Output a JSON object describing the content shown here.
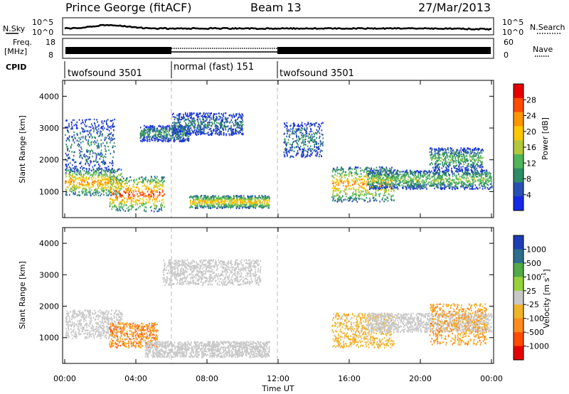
{
  "header": {
    "station": "Prince George (fitACF)",
    "beam": "Beam 13",
    "date": "27/Mar/2013"
  },
  "strip_labels": {
    "nsky": "N.Sky",
    "nsearch": "N.Search",
    "freq_line1": "Freq.",
    "freq_line2": "[MHz]",
    "nave": "Nave",
    "cpid": "CPID",
    "noise_ticks_left": [
      "10^5",
      "10^0"
    ],
    "noise_ticks_right": [
      "10^5",
      "10^0"
    ],
    "freq_ticks": [
      "18",
      "8"
    ],
    "nave_ticks": [
      "60",
      "0"
    ]
  },
  "cpid_segments": [
    {
      "label": "twofsound 3501",
      "start_h": 0,
      "end_h": 6
    },
    {
      "label": "normal (fast) 151",
      "start_h": 6,
      "end_h": 12
    },
    {
      "label": "twofsound 3501",
      "start_h": 12,
      "end_h": 24
    }
  ],
  "x_axis": {
    "title": "Time UT",
    "ticks": [
      "00:00",
      "04:00",
      "08:00",
      "12:00",
      "16:00",
      "20:00",
      "00:00"
    ],
    "range_h": [
      0,
      24
    ]
  },
  "chart_data": [
    {
      "type": "heatmap",
      "panel": "power",
      "ylabel": "Slant Range [km]",
      "ylim": [
        180,
        4500
      ],
      "yticks": [
        "4000",
        "3000",
        "2000",
        "1000"
      ],
      "colorbar_title": "Power [dB]",
      "colorbar_ticks": [
        "28",
        "24",
        "20",
        "16",
        "12",
        "8",
        "4"
      ],
      "colorbar_range": [
        0,
        30
      ],
      "colors": [
        "#1428e6",
        "#2850b4",
        "#2e8c64",
        "#50b45a",
        "#b4c83c",
        "#ffc800",
        "#ff9600",
        "#ff4b00",
        "#e60000"
      ],
      "bands": [
        {
          "t0": 0.0,
          "t1": 2.8,
          "r0": 1600,
          "r1": 3300,
          "peak": 8
        },
        {
          "t0": 0.0,
          "t1": 3.2,
          "r0": 900,
          "r1": 1750,
          "peak": 22
        },
        {
          "t0": 2.5,
          "t1": 5.6,
          "r0": 400,
          "r1": 1500,
          "peak": 26
        },
        {
          "t0": 4.2,
          "t1": 7.0,
          "r0": 2600,
          "r1": 3100,
          "peak": 10
        },
        {
          "t0": 6.0,
          "t1": 10.0,
          "r0": 2800,
          "r1": 3500,
          "peak": 8
        },
        {
          "t0": 7.0,
          "t1": 11.5,
          "r0": 500,
          "r1": 900,
          "peak": 20
        },
        {
          "t0": 12.3,
          "t1": 14.5,
          "r0": 2100,
          "r1": 3200,
          "peak": 8
        },
        {
          "t0": 15.0,
          "t1": 18.5,
          "r0": 700,
          "r1": 1800,
          "peak": 22
        },
        {
          "t0": 17.0,
          "t1": 24.0,
          "r0": 1100,
          "r1": 1700,
          "peak": 14
        },
        {
          "t0": 20.5,
          "t1": 23.5,
          "r0": 1700,
          "r1": 2400,
          "peak": 12
        }
      ]
    },
    {
      "type": "heatmap",
      "panel": "velocity",
      "ylabel": "Slant Range [km]",
      "ylim": [
        180,
        4500
      ],
      "yticks": [
        "4000",
        "3000",
        "2000",
        "1000"
      ],
      "colorbar_title": "Velocity [m s^-1]",
      "colorbar_ticks": [
        "1000",
        "500",
        "100",
        "25",
        "-25",
        "-100",
        "-500",
        "-1000"
      ],
      "colorbar_range": [
        -1200,
        1200
      ],
      "colors": [
        "#e60000",
        "#ff4b00",
        "#ff8c1e",
        "#f0b428",
        "#c8c8c8",
        "#96d23c",
        "#50aa46",
        "#2d6e8c",
        "#1e3cb4"
      ],
      "bands": [
        {
          "t0": 0.0,
          "t1": 3.2,
          "r0": 1000,
          "r1": 1900,
          "peak": 0
        },
        {
          "t0": 2.5,
          "t1": 5.2,
          "r0": 700,
          "r1": 1500,
          "peak": -600
        },
        {
          "t0": 4.5,
          "t1": 11.5,
          "r0": 400,
          "r1": 900,
          "peak": 0
        },
        {
          "t0": 5.5,
          "t1": 11.0,
          "r0": 2700,
          "r1": 3500,
          "peak": 0
        },
        {
          "t0": 15.0,
          "t1": 18.5,
          "r0": 700,
          "r1": 1800,
          "peak": -300
        },
        {
          "t0": 17.0,
          "t1": 24.0,
          "r0": 1200,
          "r1": 1800,
          "peak": 0
        },
        {
          "t0": 20.5,
          "t1": 23.7,
          "r0": 800,
          "r1": 2100,
          "peak": -500
        }
      ]
    }
  ],
  "colorbar_labels": {
    "power_title": "Power [dB]",
    "velocity_title": "Velocity [m s",
    "velocity_sup": "-1",
    "velocity_close": "]"
  }
}
